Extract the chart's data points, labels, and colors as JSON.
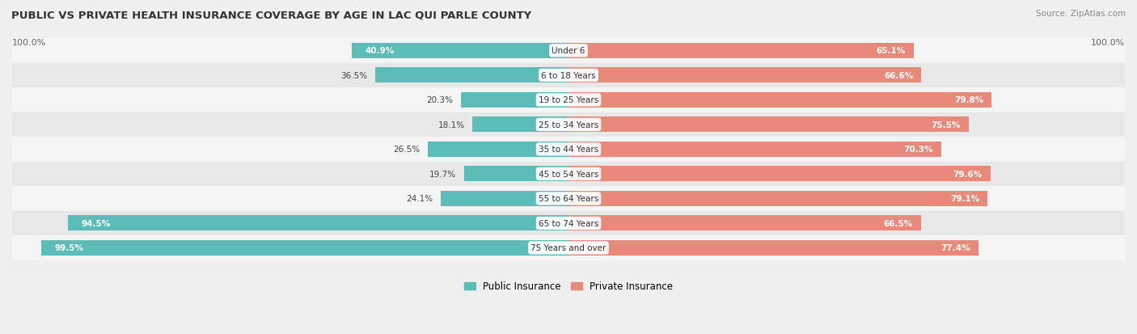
{
  "title": "PUBLIC VS PRIVATE HEALTH INSURANCE COVERAGE BY AGE IN LAC QUI PARLE COUNTY",
  "source": "Source: ZipAtlas.com",
  "categories": [
    "Under 6",
    "6 to 18 Years",
    "19 to 25 Years",
    "25 to 34 Years",
    "35 to 44 Years",
    "45 to 54 Years",
    "55 to 64 Years",
    "65 to 74 Years",
    "75 Years and over"
  ],
  "public_values": [
    40.9,
    36.5,
    20.3,
    18.1,
    26.5,
    19.7,
    24.1,
    94.5,
    99.5
  ],
  "private_values": [
    65.1,
    66.6,
    79.8,
    75.5,
    70.3,
    79.6,
    79.1,
    66.5,
    77.4
  ],
  "public_color": "#5bbcb8",
  "private_color": "#e8897a",
  "bg_color": "#f0f0f0",
  "row_bg_even": "#f5f5f5",
  "row_bg_odd": "#e8e8e8",
  "axis_label_left": "100.0%",
  "axis_label_right": "100.0%",
  "legend_public": "Public Insurance",
  "legend_private": "Private Insurance",
  "bar_height": 0.62,
  "figsize": [
    14.06,
    4.14
  ],
  "dpi": 100,
  "xlim": 105
}
